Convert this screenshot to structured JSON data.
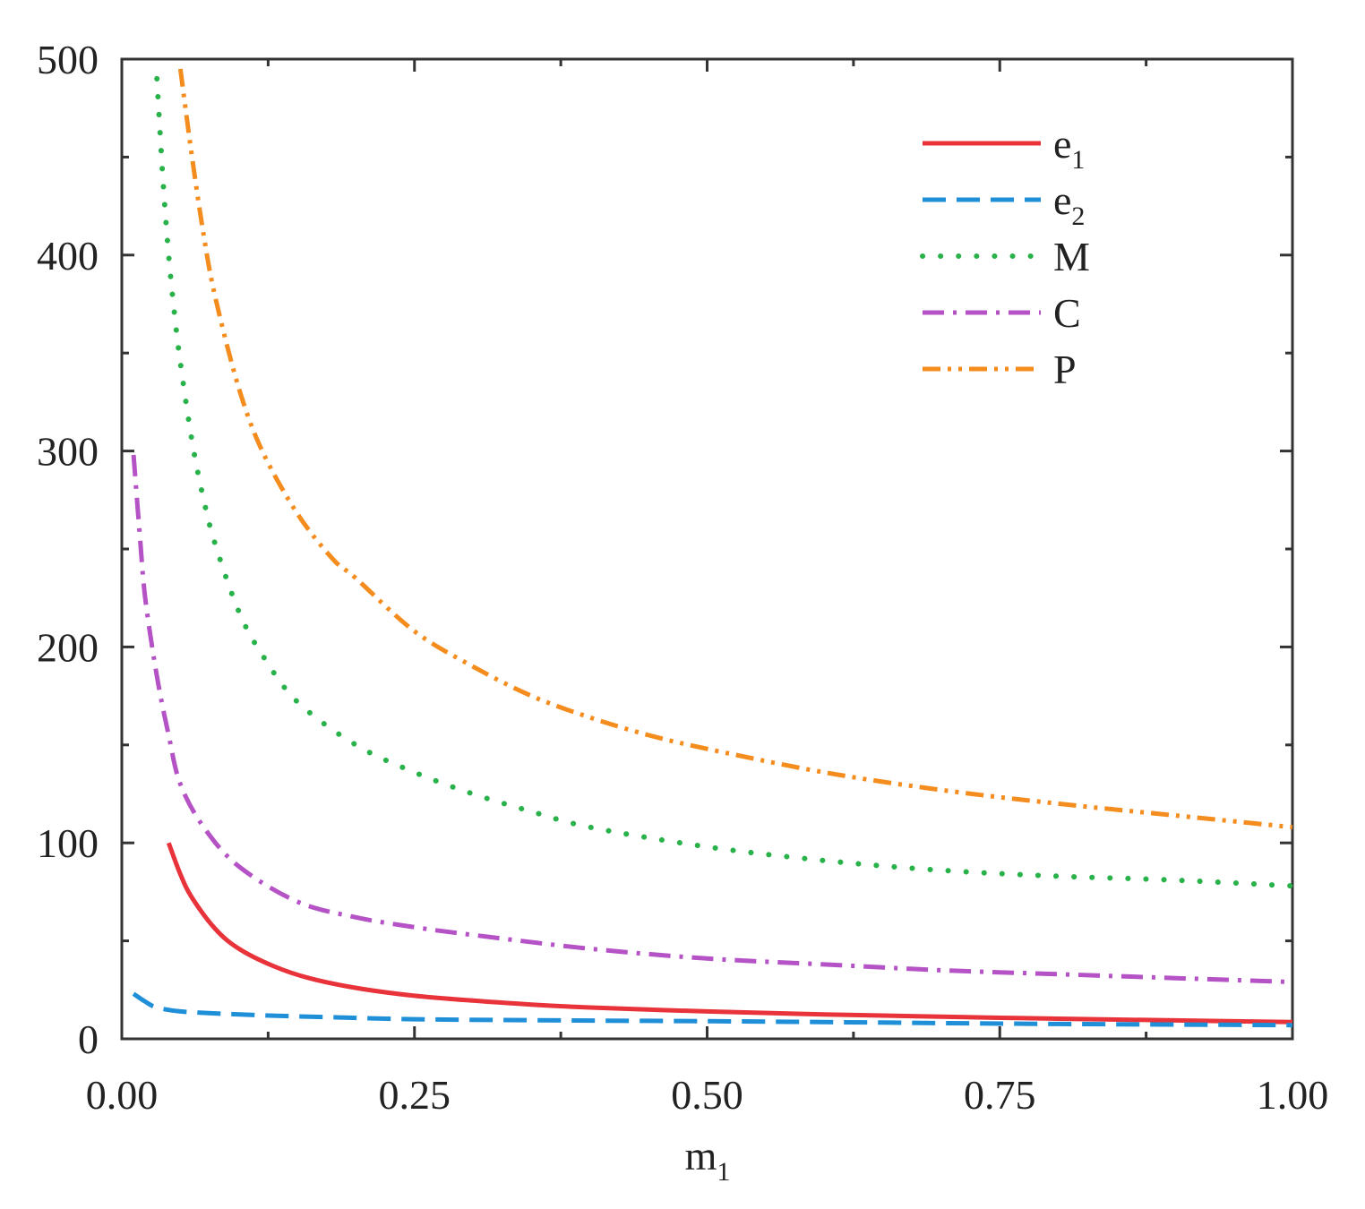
{
  "chart_data": {
    "type": "line",
    "title": "",
    "xlabel": "m",
    "xlabel_sub": "1",
    "ylabel": "",
    "xlim": [
      0,
      1
    ],
    "ylim": [
      0,
      500
    ],
    "x_ticks": [
      "0.00",
      "0.25",
      "0.50",
      "0.75",
      "1.00"
    ],
    "y_ticks": [
      "0",
      "100",
      "200",
      "300",
      "400",
      "500"
    ],
    "grid": false,
    "legend_position": "top-right",
    "series": [
      {
        "name": "e",
        "name_sub": "1",
        "color": "#e8333a",
        "style": "solid",
        "x": [
          0.04,
          0.05,
          0.06,
          0.08,
          0.1,
          0.13,
          0.16,
          0.2,
          0.25,
          0.3,
          0.35,
          0.4,
          0.5,
          0.6,
          0.7,
          0.8,
          0.9,
          1.0
        ],
        "y": [
          100,
          84,
          72,
          56,
          46,
          37,
          31,
          26,
          22,
          19.5,
          17.5,
          16,
          14,
          12.5,
          11.3,
          10.3,
          9.4,
          8.6
        ]
      },
      {
        "name": "e",
        "name_sub": "2",
        "color": "#1f8fd8",
        "style": "dashed",
        "x": [
          0.01,
          0.02,
          0.03,
          0.05,
          0.08,
          0.12,
          0.18,
          0.25,
          0.35,
          0.5,
          0.65,
          0.8,
          1.0
        ],
        "y": [
          23,
          19,
          16,
          14,
          13,
          12,
          11,
          10,
          9.5,
          9,
          8.3,
          7.6,
          7
        ]
      },
      {
        "name": "M",
        "name_sub": "",
        "color": "#2ab24a",
        "style": "dotted",
        "x": [
          0.03,
          0.035,
          0.04,
          0.045,
          0.05,
          0.06,
          0.07,
          0.08,
          0.1,
          0.12,
          0.15,
          0.2,
          0.25,
          0.3,
          0.35,
          0.4,
          0.5,
          0.6,
          0.7,
          0.8,
          0.9,
          1.0
        ],
        "y": [
          490,
          440,
          400,
          370,
          345,
          305,
          275,
          252,
          218,
          196,
          172,
          150,
          136,
          125,
          116,
          108,
          98,
          91,
          86,
          83,
          81,
          78
        ]
      },
      {
        "name": "C",
        "name_sub": "",
        "color": "#b452c6",
        "style": "dashdot",
        "x": [
          0.01,
          0.015,
          0.02,
          0.03,
          0.04,
          0.05,
          0.07,
          0.1,
          0.15,
          0.2,
          0.25,
          0.3,
          0.4,
          0.5,
          0.6,
          0.7,
          0.8,
          0.9,
          1.0
        ],
        "y": [
          298,
          260,
          225,
          185,
          155,
          130,
          108,
          88,
          70,
          62,
          57,
          53,
          46,
          41,
          38,
          35,
          33,
          31,
          29
        ]
      },
      {
        "name": "P",
        "name_sub": "",
        "color": "#f58c1e",
        "style": "dashdotdot",
        "x": [
          0.05,
          0.06,
          0.07,
          0.08,
          0.1,
          0.12,
          0.15,
          0.18,
          0.2,
          0.25,
          0.3,
          0.35,
          0.4,
          0.45,
          0.5,
          0.6,
          0.7,
          0.8,
          0.9,
          1.0
        ],
        "y": [
          495,
          450,
          410,
          378,
          332,
          300,
          268,
          245,
          235,
          208,
          190,
          175,
          164,
          155,
          148,
          136,
          127,
          120,
          114,
          108
        ]
      }
    ]
  }
}
